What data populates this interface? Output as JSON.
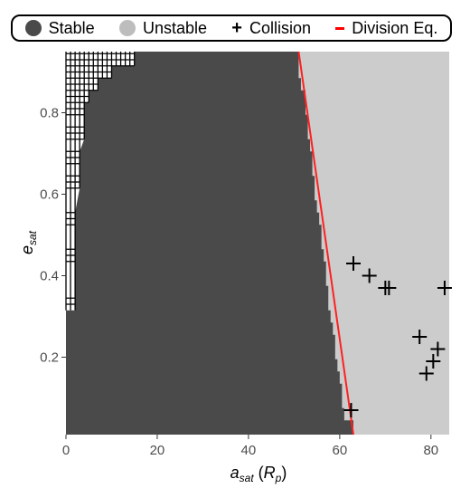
{
  "chart_data": {
    "type": "heatmap",
    "xlabel": "a_sat (R_p)",
    "ylabel": "e_sat",
    "xlim": [
      0,
      84
    ],
    "ylim": [
      0.01,
      0.95
    ],
    "x_ticks": [
      "0",
      "20",
      "40",
      "60",
      "80"
    ],
    "y_ticks": [
      "0.2",
      "0.4",
      "0.6",
      "0.8"
    ],
    "x_tick_values": [
      0,
      20,
      40,
      60,
      80
    ],
    "y_tick_values": [
      0.2,
      0.4,
      0.6,
      0.8
    ],
    "legend": {
      "position": "top",
      "entries": [
        {
          "label": "Stable",
          "marker": "circle",
          "color": "#4a4a4a"
        },
        {
          "label": "Unstable",
          "marker": "circle",
          "color": "#bdbdbd"
        },
        {
          "label": "Collision",
          "marker": "plus",
          "color": "#000000"
        },
        {
          "label": "Division Eq.",
          "marker": "line",
          "color": "#ff0000"
        }
      ]
    },
    "colors": {
      "stable": "#4a4a4a",
      "unstable": "#cccccc",
      "collision": "#000000",
      "division": "#ff2020"
    },
    "stable_boundary": [
      {
        "e": 0.03,
        "a_max": 63
      },
      {
        "e": 0.06,
        "a_max": 61
      },
      {
        "e": 0.09,
        "a_max": 60.5
      },
      {
        "e": 0.12,
        "a_max": 60.5
      },
      {
        "e": 0.15,
        "a_max": 60
      },
      {
        "e": 0.18,
        "a_max": 59.5
      },
      {
        "e": 0.21,
        "a_max": 59
      },
      {
        "e": 0.24,
        "a_max": 59
      },
      {
        "e": 0.27,
        "a_max": 58.5
      },
      {
        "e": 0.3,
        "a_max": 58
      },
      {
        "e": 0.33,
        "a_max": 57.5
      },
      {
        "e": 0.36,
        "a_max": 57.5
      },
      {
        "e": 0.39,
        "a_max": 57
      },
      {
        "e": 0.42,
        "a_max": 57
      },
      {
        "e": 0.45,
        "a_max": 56.5
      },
      {
        "e": 0.48,
        "a_max": 56
      },
      {
        "e": 0.51,
        "a_max": 56
      },
      {
        "e": 0.54,
        "a_max": 55.5
      },
      {
        "e": 0.57,
        "a_max": 55
      },
      {
        "e": 0.6,
        "a_max": 54.5
      },
      {
        "e": 0.63,
        "a_max": 54.5
      },
      {
        "e": 0.66,
        "a_max": 54
      },
      {
        "e": 0.69,
        "a_max": 54
      },
      {
        "e": 0.72,
        "a_max": 53.5
      },
      {
        "e": 0.75,
        "a_max": 53
      },
      {
        "e": 0.78,
        "a_max": 53
      },
      {
        "e": 0.81,
        "a_max": 52.5
      },
      {
        "e": 0.84,
        "a_max": 52.5
      },
      {
        "e": 0.87,
        "a_max": 51.5
      },
      {
        "e": 0.9,
        "a_max": 51
      },
      {
        "e": 0.93,
        "a_max": 51
      }
    ],
    "collision_boundary": [
      {
        "e": 0.33,
        "a_max": 2
      },
      {
        "e": 0.45,
        "a_max": 2
      },
      {
        "e": 0.54,
        "a_max": 2
      },
      {
        "e": 0.63,
        "a_max": 3
      },
      {
        "e": 0.69,
        "a_max": 3
      },
      {
        "e": 0.75,
        "a_max": 4
      },
      {
        "e": 0.81,
        "a_max": 4
      },
      {
        "e": 0.84,
        "a_max": 5
      },
      {
        "e": 0.87,
        "a_max": 7
      },
      {
        "e": 0.9,
        "a_max": 10
      },
      {
        "e": 0.93,
        "a_max": 15
      }
    ],
    "collision_points": [
      {
        "x": 63,
        "y": 0.43
      },
      {
        "x": 66.5,
        "y": 0.4
      },
      {
        "x": 70,
        "y": 0.37
      },
      {
        "x": 70.8,
        "y": 0.37
      },
      {
        "x": 83,
        "y": 0.37
      },
      {
        "x": 77.5,
        "y": 0.25
      },
      {
        "x": 81.5,
        "y": 0.22
      },
      {
        "x": 80.5,
        "y": 0.19
      },
      {
        "x": 79,
        "y": 0.16
      },
      {
        "x": 62.5,
        "y": 0.07
      }
    ],
    "division_line": {
      "x1": 63,
      "y1": 0.01,
      "x2": 51,
      "y2": 0.95
    }
  }
}
